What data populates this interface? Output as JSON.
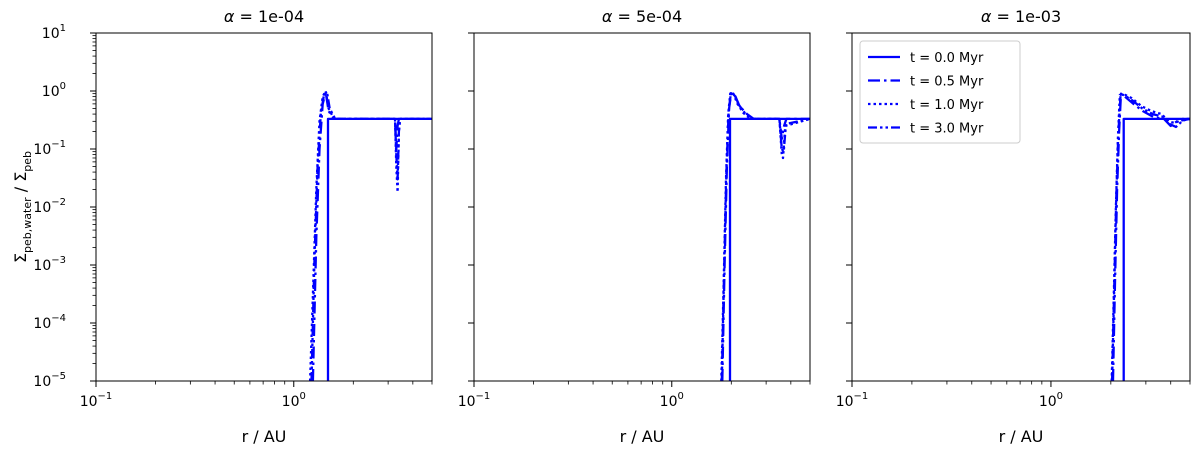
{
  "chart_data": {
    "type": "line",
    "xscale": "log",
    "yscale": "log",
    "xlim": [
      0.1,
      5
    ],
    "ylim": [
      1e-05,
      10
    ],
    "xlabel": "r / AU",
    "ylabel": "Σpeb,water / Σpeb",
    "ylabel_parts": {
      "sym1": "Σ",
      "sub1": "peb,water",
      "sep": " / ",
      "sym2": "Σ",
      "sub2": "peb"
    },
    "xticks": [
      {
        "value": 0.1,
        "base": "10",
        "exp": "−1"
      },
      {
        "value": 1,
        "base": "10",
        "exp": "0"
      }
    ],
    "yticks": [
      {
        "value": 1e-05,
        "base": "10",
        "exp": "−5"
      },
      {
        "value": 0.0001,
        "base": "10",
        "exp": "−4"
      },
      {
        "value": 0.001,
        "base": "10",
        "exp": "−3"
      },
      {
        "value": 0.01,
        "base": "10",
        "exp": "−2"
      },
      {
        "value": 0.1,
        "base": "10",
        "exp": "−1"
      },
      {
        "value": 1,
        "base": "10",
        "exp": "0"
      },
      {
        "value": 10,
        "base": "10",
        "exp": "1"
      }
    ],
    "legend_position": "upper-left of third panel",
    "grid": false,
    "color": "#0000ff",
    "panels": [
      {
        "alpha_symbol": "α",
        "alpha_value": "1e-04",
        "series": [
          {
            "name": "t = 0.0 Myr",
            "dash": "solid",
            "x": [
              1.49,
              1.49,
              1.5,
              5
            ],
            "y": [
              1e-05,
              0.33,
              0.33,
              0.33
            ]
          },
          {
            "name": "t = 0.5 Myr",
            "dash": "dashdot",
            "x": [
              1.25,
              1.3,
              1.35,
              1.4,
              1.45,
              1.5,
              1.6,
              3.25,
              3.3,
              3.35,
              3.4,
              3.45,
              5
            ],
            "y": [
              1e-05,
              0.003,
              0.1,
              0.6,
              0.95,
              0.45,
              0.33,
              0.33,
              0.1,
              0.25,
              0.33,
              0.33,
              0.33
            ]
          },
          {
            "name": "t = 1.0 Myr",
            "dash": "dotted",
            "x": [
              1.21,
              1.25,
              1.3,
              1.35,
              1.4,
              1.45,
              1.5,
              1.6,
              3.25,
              3.3,
              3.35,
              3.4,
              3.45,
              5
            ],
            "y": [
              1e-05,
              0.0003,
              0.02,
              0.3,
              0.8,
              1.0,
              0.5,
              0.33,
              0.33,
              0.05,
              0.018,
              0.2,
              0.33,
              0.33
            ]
          },
          {
            "name": "t = 3.0 Myr",
            "dash": "dashdotdot",
            "x": [
              1.23,
              1.27,
              1.32,
              1.37,
              1.42,
              1.47,
              1.52,
              1.62,
              3.25,
              3.3,
              3.35,
              3.4,
              3.45,
              5
            ],
            "y": [
              1e-05,
              0.001,
              0.05,
              0.4,
              0.85,
              0.98,
              0.5,
              0.33,
              0.33,
              0.08,
              0.03,
              0.2,
              0.33,
              0.33
            ]
          }
        ]
      },
      {
        "alpha_symbol": "α",
        "alpha_value": "5e-04",
        "series": [
          {
            "name": "t = 0.0 Myr",
            "dash": "solid",
            "x": [
              1.97,
              1.97,
              1.98,
              5
            ],
            "y": [
              1e-05,
              0.33,
              0.33,
              0.33
            ]
          },
          {
            "name": "t = 0.5 Myr",
            "dash": "dashdot",
            "x": [
              1.8,
              1.85,
              1.9,
              1.95,
              2.0,
              2.1,
              2.2,
              2.4,
              2.6,
              3.5,
              3.6,
              3.7,
              3.8,
              5
            ],
            "y": [
              1e-05,
              0.001,
              0.05,
              0.5,
              0.95,
              0.8,
              0.55,
              0.4,
              0.33,
              0.33,
              0.15,
              0.25,
              0.33,
              0.33
            ]
          },
          {
            "name": "t = 1.0 Myr",
            "dash": "dotted",
            "x": [
              1.78,
              1.83,
              1.88,
              1.93,
              1.98,
              2.05,
              2.15,
              2.3,
              2.5,
              3.5,
              3.6,
              3.65,
              3.75,
              5
            ],
            "y": [
              1e-05,
              0.0005,
              0.03,
              0.4,
              0.95,
              0.9,
              0.6,
              0.42,
              0.33,
              0.33,
              0.08,
              0.07,
              0.25,
              0.33
            ]
          },
          {
            "name": "t = 3.0 Myr",
            "dash": "dashdotdot",
            "x": [
              1.79,
              1.84,
              1.89,
              1.94,
              1.99,
              2.08,
              2.18,
              2.35,
              2.55,
              3.5,
              3.6,
              3.68,
              3.78,
              5
            ],
            "y": [
              1e-05,
              0.0008,
              0.04,
              0.45,
              0.92,
              0.85,
              0.58,
              0.41,
              0.33,
              0.33,
              0.1,
              0.09,
              0.27,
              0.33
            ]
          }
        ]
      },
      {
        "alpha_symbol": "α",
        "alpha_value": "1e-03",
        "series": [
          {
            "name": "t = 0.0 Myr",
            "dash": "solid",
            "x": [
              2.32,
              2.32,
              2.33,
              5
            ],
            "y": [
              1e-05,
              0.33,
              0.33,
              0.33
            ]
          },
          {
            "name": "t = 0.5 Myr",
            "dash": "dashdot",
            "x": [
              2.05,
              2.1,
              2.15,
              2.2,
              2.25,
              2.35,
              2.6,
              2.9,
              3.3,
              3.7,
              4.0,
              4.3,
              5
            ],
            "y": [
              1e-05,
              0.0005,
              0.02,
              0.2,
              0.9,
              0.8,
              0.6,
              0.45,
              0.35,
              0.33,
              0.25,
              0.3,
              0.33
            ]
          },
          {
            "name": "t = 1.0 Myr",
            "dash": "dotted",
            "x": [
              2.02,
              2.07,
              2.12,
              2.17,
              2.22,
              2.3,
              2.55,
              2.85,
              3.2,
              3.6,
              3.9,
              4.2,
              4.6,
              5
            ],
            "y": [
              1e-05,
              0.0003,
              0.01,
              0.15,
              0.85,
              0.9,
              0.75,
              0.55,
              0.45,
              0.4,
              0.3,
              0.28,
              0.33,
              0.33
            ]
          },
          {
            "name": "t = 3.0 Myr",
            "dash": "dashdotdot",
            "x": [
              2.03,
              2.08,
              2.13,
              2.18,
              2.24,
              2.33,
              2.58,
              2.88,
              3.25,
              3.65,
              3.95,
              4.25,
              4.6,
              5
            ],
            "y": [
              1e-05,
              0.0004,
              0.015,
              0.18,
              0.88,
              0.85,
              0.68,
              0.5,
              0.4,
              0.36,
              0.27,
              0.24,
              0.31,
              0.33
            ]
          }
        ]
      }
    ]
  }
}
